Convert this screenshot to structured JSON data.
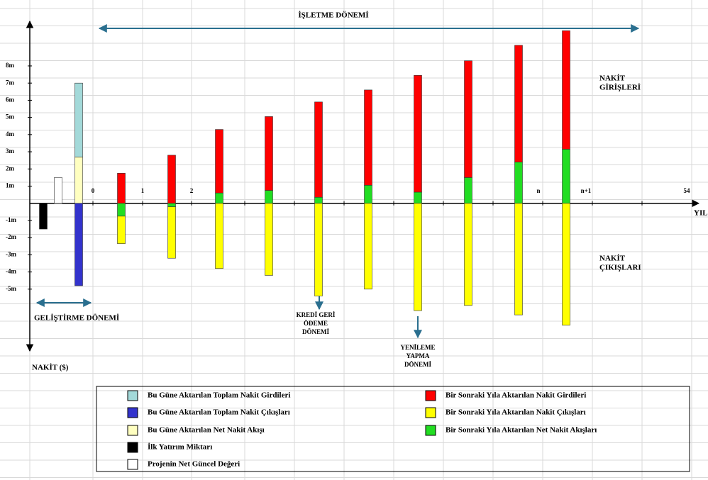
{
  "chart_data": {
    "type": "bar",
    "stacked": true,
    "categories": [
      null,
      null,
      null,
      null,
      null,
      null,
      null,
      null,
      null,
      null,
      null,
      null,
      null
    ],
    "series": [
      {
        "name": "Bu Güne Aktarılan Net Nakit Akışı",
        "color": "#ffffc0",
        "values": [
          null,
          null,
          2.7,
          null,
          null,
          null,
          null,
          null,
          null,
          null,
          null,
          null,
          null
        ]
      },
      {
        "name": "Bu Güne Aktarılan Toplam Nakit Girdileri",
        "color": "#a3d9d9",
        "values": [
          null,
          null,
          4.3,
          null,
          null,
          null,
          null,
          null,
          null,
          null,
          null,
          null,
          null
        ]
      },
      {
        "name": "Bu Güne Aktarılan Toplam Nakit Çıkışları",
        "color": "#3333cc",
        "values": [
          null,
          null,
          -4.8,
          null,
          null,
          null,
          null,
          null,
          null,
          null,
          null,
          null,
          null
        ]
      },
      {
        "name": "İlk Yatırım Miktarı",
        "color": "#000000",
        "values": [
          -1.5,
          null,
          null,
          null,
          null,
          null,
          null,
          null,
          null,
          null,
          null,
          null,
          null
        ]
      },
      {
        "name": "Projenin Net Güncel Değeri",
        "color": "#ffffff",
        "values": [
          null,
          1.5,
          null,
          null,
          null,
          null,
          null,
          null,
          null,
          null,
          null,
          null,
          null
        ]
      },
      {
        "name": "Bir Sonraki Yıla Aktarılan Net Nakit Akışları",
        "color": "#22dd22",
        "values": [
          null,
          null,
          null,
          -0.75,
          -0.2,
          0.6,
          0.75,
          0.35,
          1.05,
          0.65,
          1.5,
          2.4,
          3.15
        ]
      },
      {
        "name": "Bir Sonraki Yıla Aktarılan Nakit Girdileri",
        "color": "#ff0000",
        "values": [
          null,
          null,
          null,
          1.75,
          2.8,
          3.7,
          4.3,
          5.55,
          5.55,
          6.8,
          6.8,
          6.8,
          6.9
        ]
      },
      {
        "name": "Bir Sonraki Yıla Aktarılan Nakit Çıkışları",
        "color": "#ffff00",
        "values": [
          null,
          null,
          null,
          -1.6,
          -3.0,
          -3.8,
          -4.2,
          -5.4,
          -5.0,
          -6.25,
          -5.95,
          -6.5,
          -7.1
        ]
      }
    ],
    "ylim": [
      -8.6,
      10.6
    ],
    "yticks": [
      {
        "value": 8,
        "label": "8m"
      },
      {
        "value": 7,
        "label": "7m"
      },
      {
        "value": 6,
        "label": "6m"
      },
      {
        "value": 5,
        "label": "5m"
      },
      {
        "value": 4,
        "label": "4m"
      },
      {
        "value": 3,
        "label": "3m"
      },
      {
        "value": 2,
        "label": "2m"
      },
      {
        "value": 1,
        "label": "1m"
      },
      {
        "value": -1,
        "label": "-1m"
      },
      {
        "value": -2,
        "label": "-2m"
      },
      {
        "value": -3,
        "label": "-3m"
      },
      {
        "value": -4,
        "label": "-4m"
      },
      {
        "value": -5,
        "label": "-5m"
      }
    ],
    "x_labels": [
      "0",
      "1",
      "2",
      "n",
      "n+1",
      "54"
    ],
    "x_axis_label": "YIL",
    "y_axis_label": "NAKİT ($)",
    "annotations": {
      "operating_period": "İŞLETME DÖNEMİ",
      "development_period": "GELİŞTİRME DÖNEMİ",
      "cash_inflows": [
        "NAKİT",
        "GİRİŞLERİ"
      ],
      "cash_outflows": [
        "NAKİT",
        "ÇIKIŞLARI"
      ],
      "loan_repayment": [
        "KREDİ GERİ",
        "ÖDEME",
        "DÖNEMİ"
      ],
      "renewal": [
        "YENİLEME",
        "YAPMA",
        "DÖNEMİ"
      ]
    }
  }
}
